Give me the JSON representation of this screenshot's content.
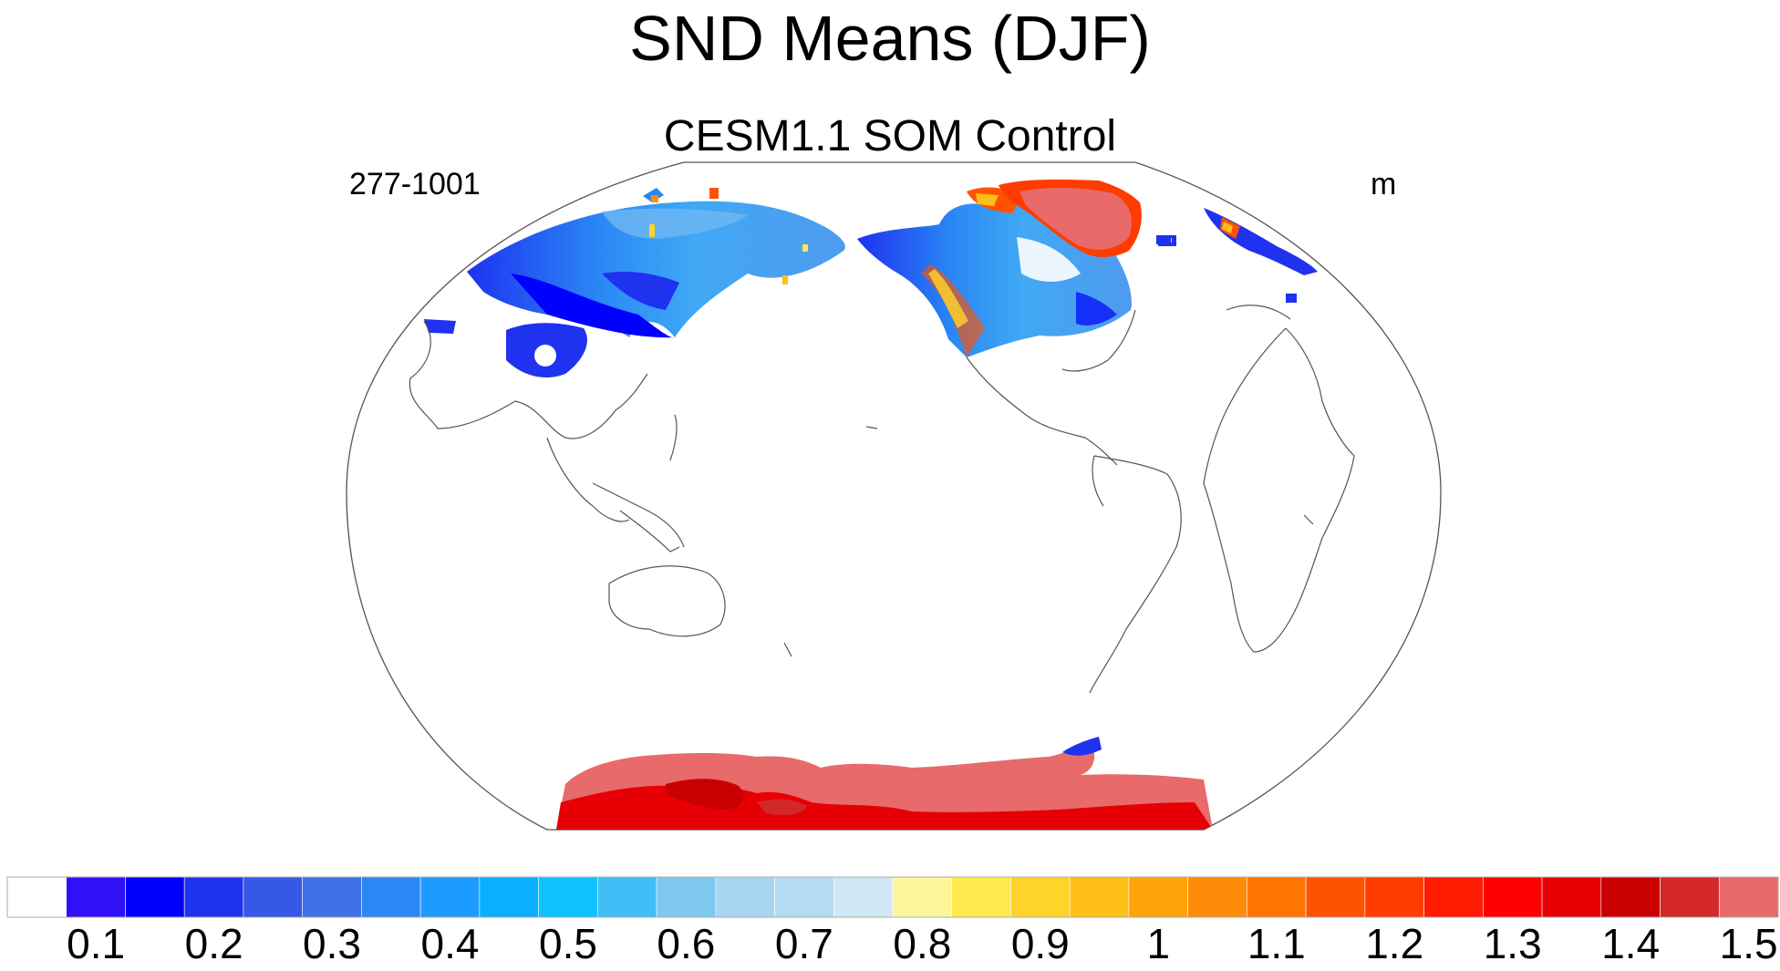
{
  "title": "SND Means (DJF)",
  "subtitle": "CESM1.1 SOM Control",
  "left_label": "277-1001",
  "right_label": "m",
  "colorbar": {
    "colors": [
      "#ffffff",
      "#3010f7",
      "#0000ff",
      "#1e32f0",
      "#3658e6",
      "#4070e6",
      "#2a88f5",
      "#1e9bff",
      "#0ab0ff",
      "#10c3ff",
      "#40bef5",
      "#7ec8f0",
      "#a6d6f2",
      "#b4ddf3",
      "#d0e8f6",
      "#fef79a",
      "#ffe94c",
      "#ffd42a",
      "#ffbe18",
      "#ffa30a",
      "#ff8c08",
      "#ff7500",
      "#ff5200",
      "#ff3c00",
      "#ff1c00",
      "#ff0000",
      "#e60005",
      "#c80000",
      "#d42828",
      "#e86a6a"
    ],
    "tick_labels": [
      "0.1",
      "0.2",
      "0.3",
      "0.4",
      "0.5",
      "0.6",
      "0.7",
      "0.8",
      "0.9",
      "1",
      "1.1",
      "1.2",
      "1.3",
      "1.4",
      "1.5"
    ]
  }
}
